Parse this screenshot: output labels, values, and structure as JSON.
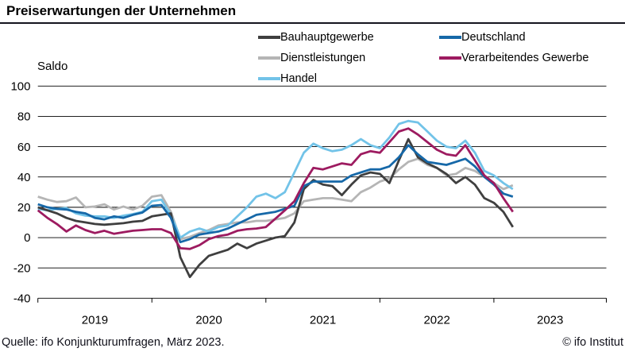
{
  "title": "Preiserwartungen der Unternehmen",
  "footer": {
    "source": "Quelle: ifo Konjunkturumfragen, März 2023.",
    "copyright": "© ifo Institut"
  },
  "chart_data": {
    "type": "line",
    "y_axis_label": "Saldo",
    "ylim": [
      -40,
      100
    ],
    "y_ticks": [
      100,
      80,
      60,
      40,
      20,
      0,
      -20,
      -40
    ],
    "x_year_labels": [
      "2019",
      "2020",
      "2021",
      "2022",
      "2023"
    ],
    "x_start_month": "2019-01",
    "x_end_month": "2023-03",
    "frequency": "monthly",
    "grid": "horizontal-only",
    "legend_position": "top",
    "series": [
      {
        "name": "Bauhauptgewerbe",
        "color": "#3f3f3f",
        "values": [
          20,
          18,
          16,
          13,
          11,
          10,
          9,
          8.5,
          9,
          9.5,
          10.5,
          11,
          14,
          15,
          16,
          -13,
          -26,
          -18,
          -12,
          -10,
          -8,
          -4,
          -7,
          -4,
          -2,
          0,
          1,
          10,
          32,
          38,
          35,
          34,
          28,
          35,
          41,
          43,
          42,
          36,
          51,
          65,
          53,
          49,
          46,
          42,
          36,
          40,
          35,
          26,
          23,
          17,
          7
        ]
      },
      {
        "name": "Dienstleistungen",
        "color": "#b5b5b5",
        "values": [
          27,
          25,
          23.5,
          24,
          26.5,
          20,
          20.5,
          22,
          18.5,
          20.5,
          18.5,
          21,
          27,
          28,
          17,
          -1,
          0.5,
          3,
          5,
          8,
          9,
          10,
          10,
          11,
          11,
          12,
          13,
          16,
          24,
          25,
          26,
          26,
          25,
          24,
          30,
          33,
          37,
          39,
          45,
          50,
          52,
          48,
          46,
          41,
          42,
          46,
          44,
          40,
          36,
          32,
          34.5
        ]
      },
      {
        "name": "Handel",
        "color": "#72c3e8",
        "values": [
          19,
          18,
          19,
          19.5,
          16,
          14.5,
          14,
          14,
          13,
          14.5,
          15.5,
          17,
          24,
          25,
          15,
          0,
          4,
          6,
          4,
          7,
          8,
          14,
          20,
          27,
          29,
          26,
          30,
          43,
          56,
          62,
          59,
          57,
          58,
          61,
          65,
          61,
          59,
          66,
          75,
          77,
          76,
          70,
          64,
          60,
          59,
          64,
          56,
          44,
          41,
          36,
          32
        ]
      },
      {
        "name": "Deutschland",
        "color": "#1668a8",
        "values": [
          22,
          20,
          19,
          18.5,
          17,
          16,
          13,
          12,
          14,
          13,
          15,
          16.5,
          21,
          21.5,
          13,
          -3,
          -1,
          2,
          3,
          4,
          6,
          9,
          12,
          15,
          16,
          17,
          19,
          21,
          34,
          37,
          37,
          37,
          37,
          41,
          43,
          45,
          45,
          47,
          53,
          61,
          55,
          50,
          49,
          48,
          50,
          52,
          47,
          40,
          35,
          29,
          27
        ]
      },
      {
        "name": "Verarbeitendes Gewerbe",
        "color": "#9d1b60",
        "values": [
          18,
          13,
          9,
          4,
          8,
          5,
          3,
          4.5,
          2.5,
          3.5,
          4.5,
          5,
          5.5,
          5.5,
          3,
          -7,
          -7.5,
          -5,
          -1,
          1,
          2,
          4.5,
          5.5,
          6,
          7,
          12.5,
          18,
          24,
          36,
          46,
          45,
          47,
          49,
          48,
          55,
          57,
          56,
          63,
          70,
          72,
          68,
          63,
          58,
          55,
          54,
          61,
          51,
          41,
          36,
          26,
          17
        ]
      }
    ],
    "legend_columns": [
      [
        0,
        1,
        2
      ],
      [
        3,
        4
      ]
    ],
    "draw_order": [
      1,
      2,
      0,
      3,
      4
    ]
  }
}
